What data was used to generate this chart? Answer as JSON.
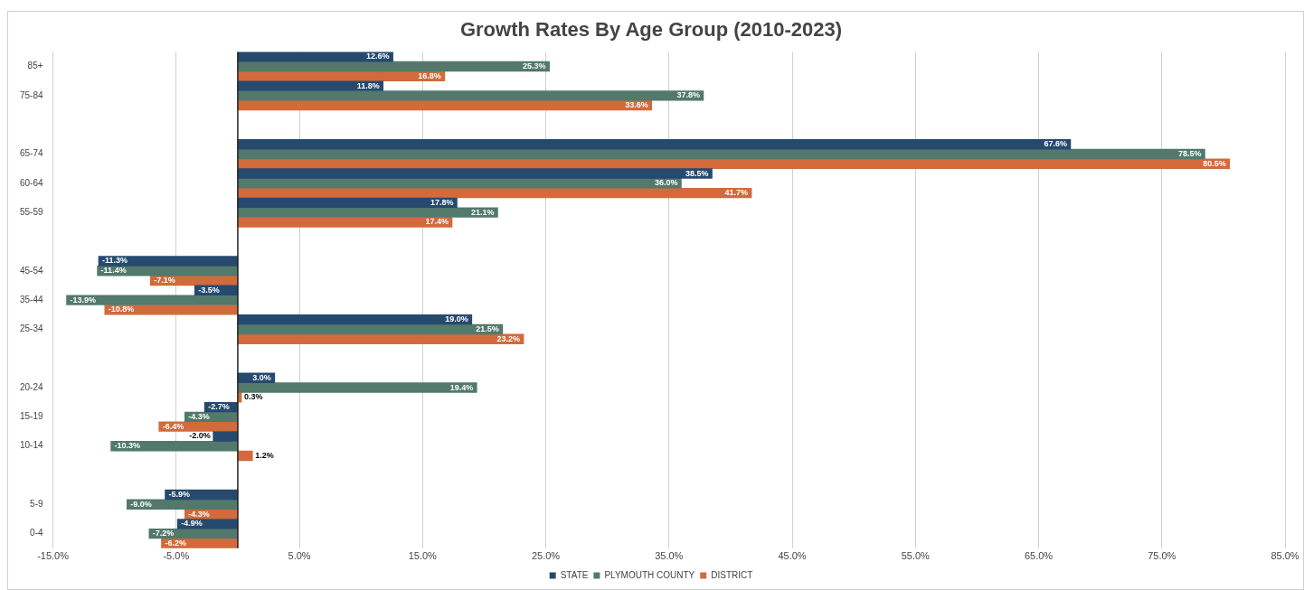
{
  "chart_data": {
    "type": "bar",
    "orientation": "horizontal",
    "title": "Growth Rates By Age Group (2010-2023)",
    "categories": [
      "85+",
      "75-84",
      null,
      "65-74",
      "60-64",
      "55-59",
      null,
      "45-54",
      "35-44",
      "25-34",
      null,
      "20-24",
      "15-19",
      "10-14",
      null,
      "5-9",
      "0-4"
    ],
    "series": [
      {
        "name": "STATE",
        "color": "#264a6e",
        "values": [
          12.6,
          11.8,
          null,
          67.6,
          38.5,
          17.8,
          null,
          -11.3,
          -3.5,
          19.0,
          null,
          3.0,
          -2.7,
          -2.0,
          null,
          -5.9,
          -4.9
        ],
        "value_labels": [
          "12.6%",
          "11.8%",
          null,
          "67.6%",
          "38.5%",
          "17.8%",
          null,
          "-11.3%",
          "-3.5%",
          "19.0%",
          null,
          "3.0%",
          "-2.7%",
          "-2.0%",
          null,
          "-5.9%",
          "-4.9%"
        ]
      },
      {
        "name": "PLYMOUTH COUNTY",
        "color": "#52796b",
        "values": [
          25.3,
          37.8,
          null,
          78.5,
          36.0,
          21.1,
          null,
          -11.4,
          -13.9,
          21.5,
          null,
          19.4,
          -4.3,
          -10.3,
          null,
          -9.0,
          -7.2
        ],
        "value_labels": [
          "25.3%",
          "37.8%",
          null,
          "78.5%",
          "36.0%",
          "21.1%",
          null,
          "-11.4%",
          "-13.9%",
          "21.5%",
          null,
          "19.4%",
          "-4.3%",
          "-10.3%",
          null,
          "-9.0%",
          "-7.2%"
        ]
      },
      {
        "name": "DISTRICT",
        "color": "#d26a3c",
        "values": [
          16.8,
          33.6,
          null,
          80.5,
          41.7,
          17.4,
          null,
          -7.1,
          -10.8,
          23.2,
          null,
          0.3,
          -6.4,
          1.2,
          null,
          -4.3,
          -6.2
        ],
        "value_labels": [
          "16.8%",
          "33.6%",
          null,
          "80.5%",
          "41.7%",
          "17.4%",
          null,
          "-7.1%",
          "-10.8%",
          "23.2%",
          null,
          "0.3%",
          "-6.4%",
          "1.2%",
          null,
          "-4.3%",
          "-6.2%"
        ]
      }
    ],
    "xlim": [
      -15,
      85
    ],
    "xticks": [
      {
        "value": -15,
        "label": "-15.0%"
      },
      {
        "value": -5,
        "label": "-5.0%"
      },
      {
        "value": 5,
        "label": "5.0%"
      },
      {
        "value": 15,
        "label": "15.0%"
      },
      {
        "value": 25,
        "label": "25.0%"
      },
      {
        "value": 35,
        "label": "35.0%"
      },
      {
        "value": 45,
        "label": "45.0%"
      },
      {
        "value": 55,
        "label": "55.0%"
      },
      {
        "value": 65,
        "label": "65.0%"
      },
      {
        "value": 75,
        "label": "75.0%"
      },
      {
        "value": 85,
        "label": "85.0%"
      }
    ],
    "grid": "x",
    "legend": "bottom"
  }
}
